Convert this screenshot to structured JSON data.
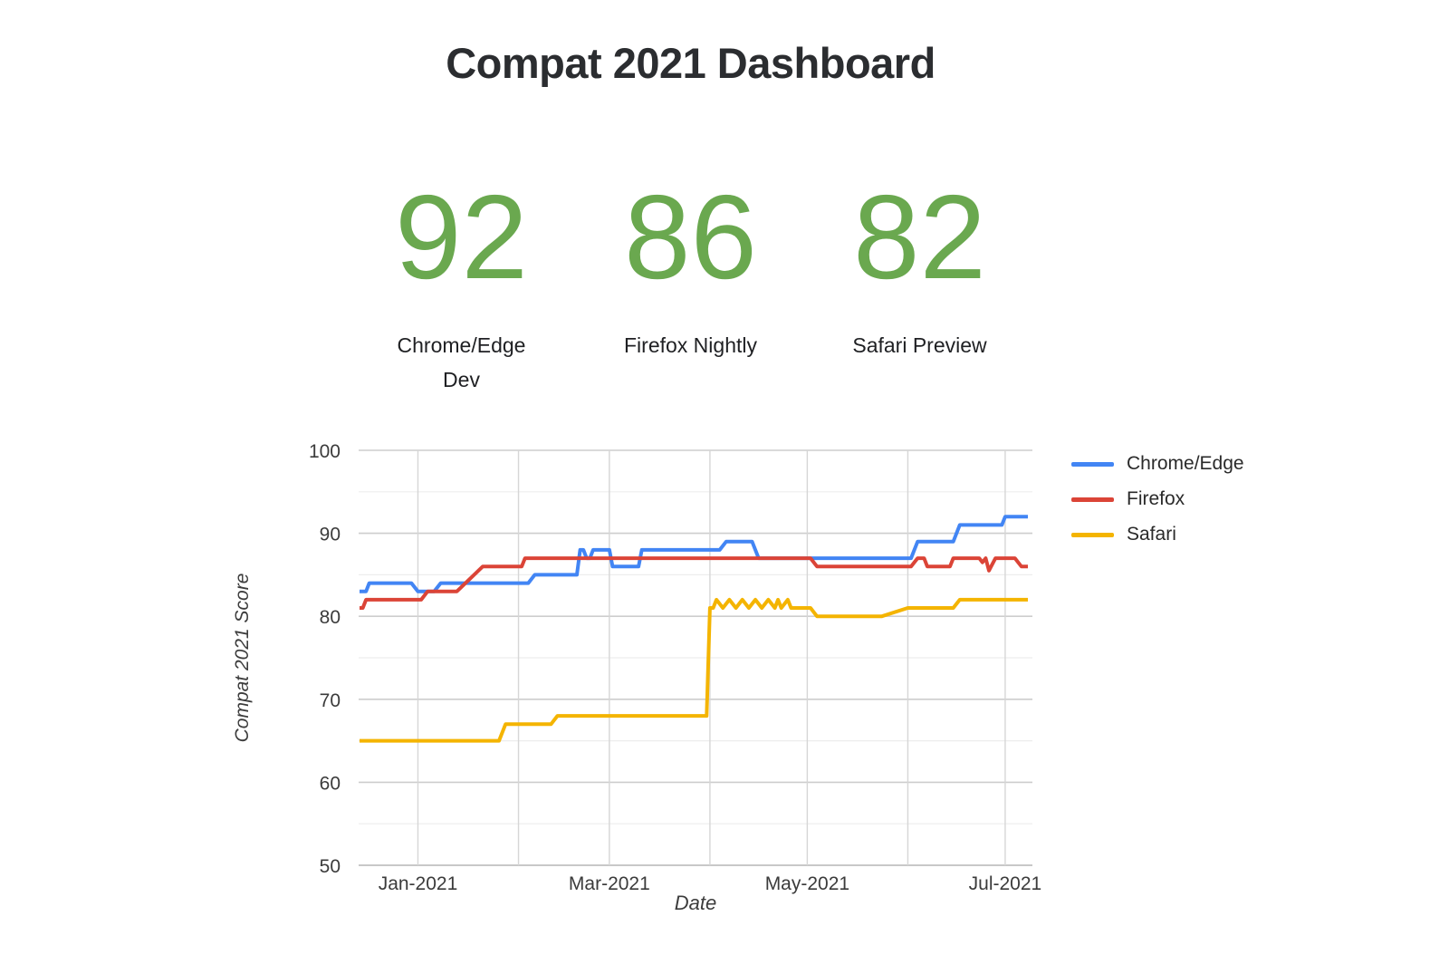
{
  "page": {
    "title": "Compat 2021 Dashboard"
  },
  "colors": {
    "score_green": "#6aa84f",
    "chrome_blue": "#4285f4",
    "firefox_red": "#db4437",
    "safari_yellow": "#f4b400"
  },
  "scorecards": [
    {
      "value": "92",
      "label": "Chrome/Edge Dev"
    },
    {
      "value": "86",
      "label": "Firefox Nightly"
    },
    {
      "value": "82",
      "label": "Safari Preview"
    }
  ],
  "chart_data": {
    "type": "line",
    "title": "",
    "xlabel": "Date",
    "ylabel": "Compat 2021 Score",
    "ylim": [
      50,
      100
    ],
    "yticks": [
      100,
      90,
      80,
      70,
      60,
      50
    ],
    "xticks": [
      {
        "label": "Jan-2021",
        "date": "2021-01-01"
      },
      {
        "label": "Mar-2021",
        "date": "2021-03-01"
      },
      {
        "label": "May-2021",
        "date": "2021-05-01"
      },
      {
        "label": "Jul-2021",
        "date": "2021-07-01"
      }
    ],
    "month_gridlines": [
      "2021-01-01",
      "2021-02-01",
      "2021-03-01",
      "2021-04-01",
      "2021-05-01",
      "2021-06-01",
      "2021-07-01"
    ],
    "x_range": [
      "2020-12-14",
      "2021-07-08"
    ],
    "grid": "horizontal major+minor every 5, vertical monthly",
    "legend_position": "right",
    "series": [
      {
        "name": "Chrome/Edge",
        "color": "#4285f4",
        "points": [
          [
            "2020-12-14",
            83
          ],
          [
            "2020-12-16",
            83
          ],
          [
            "2020-12-17",
            84
          ],
          [
            "2020-12-30",
            84
          ],
          [
            "2021-01-01",
            83
          ],
          [
            "2021-01-06",
            83
          ],
          [
            "2021-01-08",
            84
          ],
          [
            "2021-02-04",
            84
          ],
          [
            "2021-02-06",
            85
          ],
          [
            "2021-02-19",
            85
          ],
          [
            "2021-02-20",
            88
          ],
          [
            "2021-02-21",
            88
          ],
          [
            "2021-02-22",
            87
          ],
          [
            "2021-02-23",
            87
          ],
          [
            "2021-02-24",
            88
          ],
          [
            "2021-03-01",
            88
          ],
          [
            "2021-03-02",
            86
          ],
          [
            "2021-03-10",
            86
          ],
          [
            "2021-03-11",
            88
          ],
          [
            "2021-04-04",
            88
          ],
          [
            "2021-04-06",
            89
          ],
          [
            "2021-04-14",
            89
          ],
          [
            "2021-04-16",
            87
          ],
          [
            "2021-06-02",
            87
          ],
          [
            "2021-06-04",
            89
          ],
          [
            "2021-06-15",
            89
          ],
          [
            "2021-06-17",
            91
          ],
          [
            "2021-06-30",
            91
          ],
          [
            "2021-07-01",
            92
          ],
          [
            "2021-07-08",
            92
          ]
        ]
      },
      {
        "name": "Firefox",
        "color": "#db4437",
        "points": [
          [
            "2020-12-14",
            81
          ],
          [
            "2020-12-15",
            81
          ],
          [
            "2020-12-16",
            82
          ],
          [
            "2021-01-02",
            82
          ],
          [
            "2021-01-04",
            83
          ],
          [
            "2021-01-13",
            83
          ],
          [
            "2021-01-21",
            86
          ],
          [
            "2021-02-02",
            86
          ],
          [
            "2021-02-03",
            87
          ],
          [
            "2021-05-02",
            87
          ],
          [
            "2021-05-04",
            86
          ],
          [
            "2021-06-02",
            86
          ],
          [
            "2021-06-04",
            87
          ],
          [
            "2021-06-06",
            87
          ],
          [
            "2021-06-07",
            86
          ],
          [
            "2021-06-14",
            86
          ],
          [
            "2021-06-15",
            87
          ],
          [
            "2021-06-23",
            87
          ],
          [
            "2021-06-24",
            86.5
          ],
          [
            "2021-06-25",
            87
          ],
          [
            "2021-06-26",
            85.5
          ],
          [
            "2021-06-28",
            87
          ],
          [
            "2021-07-04",
            87
          ],
          [
            "2021-07-06",
            86
          ],
          [
            "2021-07-08",
            86
          ]
        ]
      },
      {
        "name": "Safari",
        "color": "#f4b400",
        "points": [
          [
            "2020-12-14",
            65
          ],
          [
            "2021-01-26",
            65
          ],
          [
            "2021-01-28",
            67
          ],
          [
            "2021-02-11",
            67
          ],
          [
            "2021-02-13",
            68
          ],
          [
            "2021-03-31",
            68
          ],
          [
            "2021-04-01",
            81
          ],
          [
            "2021-04-02",
            81
          ],
          [
            "2021-04-03",
            82
          ],
          [
            "2021-04-05",
            81
          ],
          [
            "2021-04-07",
            82
          ],
          [
            "2021-04-09",
            81
          ],
          [
            "2021-04-11",
            82
          ],
          [
            "2021-04-13",
            81
          ],
          [
            "2021-04-15",
            82
          ],
          [
            "2021-04-17",
            81
          ],
          [
            "2021-04-19",
            82
          ],
          [
            "2021-04-21",
            81
          ],
          [
            "2021-04-22",
            82
          ],
          [
            "2021-04-23",
            81
          ],
          [
            "2021-04-25",
            82
          ],
          [
            "2021-04-26",
            81
          ],
          [
            "2021-05-02",
            81
          ],
          [
            "2021-05-04",
            80
          ],
          [
            "2021-05-24",
            80
          ],
          [
            "2021-06-01",
            81
          ],
          [
            "2021-06-15",
            81
          ],
          [
            "2021-06-17",
            82
          ],
          [
            "2021-07-08",
            82
          ]
        ]
      }
    ]
  }
}
